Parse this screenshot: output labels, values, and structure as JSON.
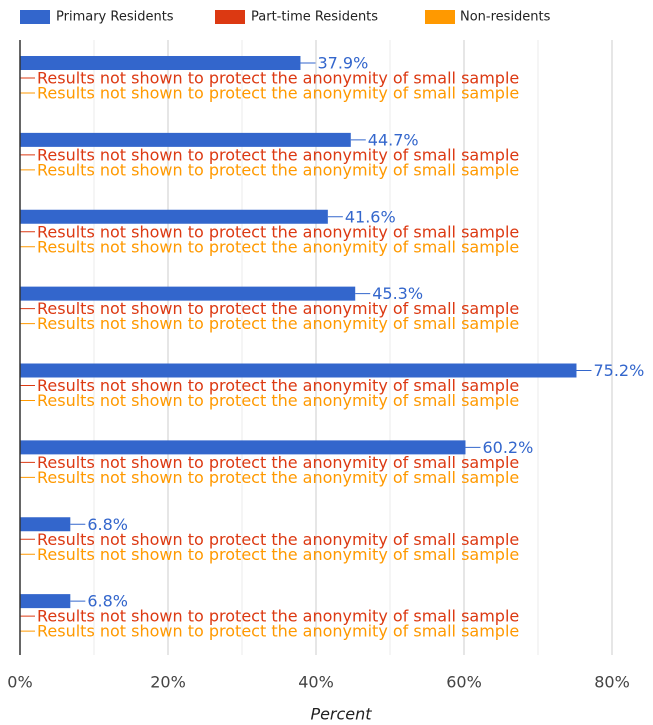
{
  "chart_data": {
    "type": "hbar",
    "x_axis_label": "Percent",
    "categories": [
      null,
      null,
      null,
      null,
      null,
      null,
      null,
      null
    ],
    "series": [
      {
        "name": "Primary Residents",
        "color": "#3366cc",
        "values": [
          37.9,
          44.7,
          41.6,
          45.3,
          75.2,
          60.2,
          6.8,
          6.8
        ],
        "value_labels": [
          "37.9%",
          "44.7%",
          "41.6%",
          "45.3%",
          "75.2%",
          "60.2%",
          "6.8%",
          "6.8%"
        ]
      },
      {
        "name": "Part-time Residents",
        "color": "#dc3912",
        "values": [
          null,
          null,
          null,
          null,
          null,
          null,
          null,
          null
        ],
        "value_labels": [
          "Results not shown to protect the anonymity of small sample",
          "Results not shown to protect the anonymity of small sample",
          "Results not shown to protect the anonymity of small sample",
          "Results not shown to protect the anonymity of small sample",
          "Results not shown to protect the anonymity of small sample",
          "Results not shown to protect the anonymity of small sample",
          "Results not shown to protect the anonymity of small sample",
          "Results not shown to protect the anonymity of small sample"
        ]
      },
      {
        "name": "Non-residents",
        "color": "#ff9900",
        "values": [
          null,
          null,
          null,
          null,
          null,
          null,
          null,
          null
        ],
        "value_labels": [
          "Results not shown to protect the anonymity of small sample",
          "Results not shown to protect the anonymity of small sample",
          "Results not shown to protect the anonymity of small sample",
          "Results not shown to protect the anonymity of small sample",
          "Results not shown to protect the anonymity of small sample",
          "Results not shown to protect the anonymity of small sample",
          "Results not shown to protect the anonymity of small sample",
          "Results not shown to protect the anonymity of small sample"
        ]
      }
    ],
    "xlim": [
      0,
      80
    ],
    "xticks": [
      {
        "value": 0,
        "label": "0%"
      },
      {
        "value": 20,
        "label": "20%"
      },
      {
        "value": 40,
        "label": "40%"
      },
      {
        "value": 60,
        "label": "60%"
      },
      {
        "value": 80,
        "label": "80%"
      }
    ],
    "minor_xticks": [
      10,
      30,
      50,
      70
    ],
    "grid": true,
    "legend": "top"
  }
}
